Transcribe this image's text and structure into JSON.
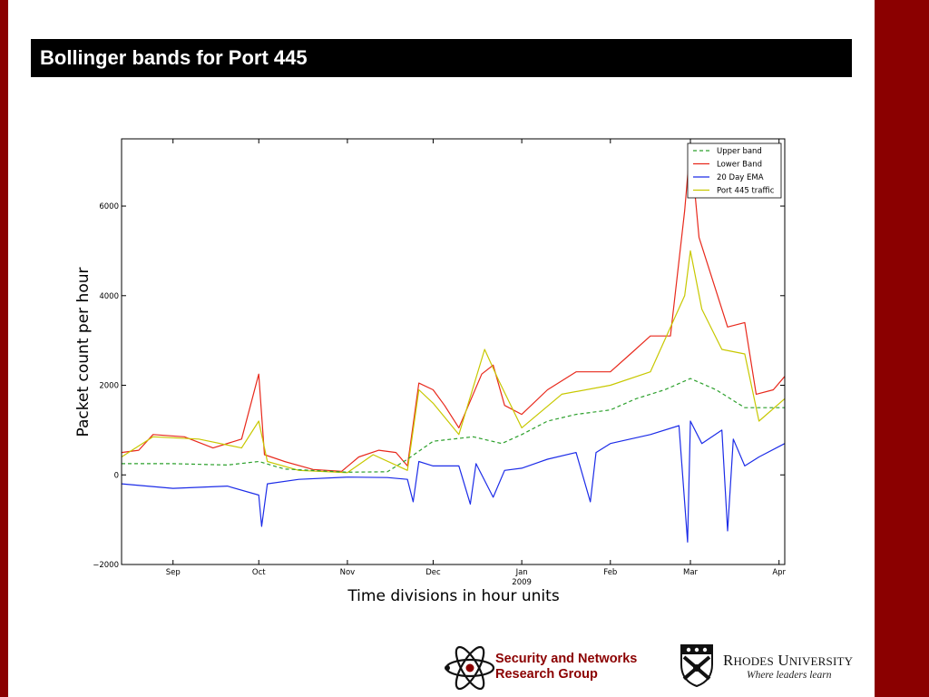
{
  "slide": {
    "title": "Bollinger bands for Port 445",
    "frame_color": "#8b0000"
  },
  "chart_data": {
    "type": "line",
    "title": "",
    "xlabel": "Time divisions in hour units",
    "ylabel": "Packet count per hour",
    "x_range": [
      "2008-08-14",
      "2009-04-03"
    ],
    "ylim": [
      -2000,
      7500
    ],
    "yticks": [
      -2000,
      0,
      2000,
      4000,
      6000
    ],
    "xticks": [
      {
        "date": "2008-09-01",
        "label": "Sep"
      },
      {
        "date": "2008-10-01",
        "label": "Oct"
      },
      {
        "date": "2008-11-01",
        "label": "Nov"
      },
      {
        "date": "2008-12-01",
        "label": "Dec"
      },
      {
        "date": "2009-01-01",
        "label": "Jan",
        "sublabel": "2009"
      },
      {
        "date": "2009-02-01",
        "label": "Feb"
      },
      {
        "date": "2009-03-01",
        "label": "Mar"
      },
      {
        "date": "2009-04-01",
        "label": "Apr"
      }
    ],
    "grid": false,
    "legend_position": "top-right",
    "series": [
      {
        "name": "Upper band",
        "color": "#2ca02c",
        "style": "dashed",
        "points": [
          [
            "2008-08-14",
            250
          ],
          [
            "2008-09-01",
            250
          ],
          [
            "2008-09-20",
            220
          ],
          [
            "2008-10-01",
            300
          ],
          [
            "2008-10-10",
            130
          ],
          [
            "2008-11-01",
            60
          ],
          [
            "2008-11-15",
            70
          ],
          [
            "2008-11-22",
            350
          ],
          [
            "2008-12-01",
            750
          ],
          [
            "2008-12-15",
            850
          ],
          [
            "2008-12-25",
            700
          ],
          [
            "2009-01-01",
            900
          ],
          [
            "2009-01-10",
            1200
          ],
          [
            "2009-01-20",
            1350
          ],
          [
            "2009-02-01",
            1450
          ],
          [
            "2009-02-10",
            1700
          ],
          [
            "2009-02-20",
            1900
          ],
          [
            "2009-03-01",
            2150
          ],
          [
            "2009-03-10",
            1900
          ],
          [
            "2009-03-20",
            1500
          ],
          [
            "2009-04-03",
            1500
          ]
        ]
      },
      {
        "name": "Lower Band",
        "color": "#e8291c",
        "style": "solid",
        "points": [
          [
            "2008-08-14",
            500
          ],
          [
            "2008-08-20",
            550
          ],
          [
            "2008-08-25",
            900
          ],
          [
            "2008-09-05",
            850
          ],
          [
            "2008-09-15",
            600
          ],
          [
            "2008-09-25",
            800
          ],
          [
            "2008-10-01",
            2250
          ],
          [
            "2008-10-03",
            450
          ],
          [
            "2008-10-10",
            300
          ],
          [
            "2008-10-20",
            120
          ],
          [
            "2008-10-30",
            80
          ],
          [
            "2008-11-05",
            400
          ],
          [
            "2008-11-12",
            550
          ],
          [
            "2008-11-18",
            500
          ],
          [
            "2008-11-22",
            200
          ],
          [
            "2008-11-26",
            2050
          ],
          [
            "2008-12-01",
            1900
          ],
          [
            "2008-12-05",
            1550
          ],
          [
            "2008-12-10",
            1050
          ],
          [
            "2008-12-18",
            2250
          ],
          [
            "2008-12-22",
            2450
          ],
          [
            "2008-12-26",
            1550
          ],
          [
            "2009-01-01",
            1350
          ],
          [
            "2009-01-10",
            1900
          ],
          [
            "2009-01-20",
            2300
          ],
          [
            "2009-02-01",
            2300
          ],
          [
            "2009-02-08",
            2700
          ],
          [
            "2009-02-15",
            3100
          ],
          [
            "2009-02-22",
            3100
          ],
          [
            "2009-02-27",
            5900
          ],
          [
            "2009-03-01",
            7400
          ],
          [
            "2009-03-04",
            5300
          ],
          [
            "2009-03-08",
            4500
          ],
          [
            "2009-03-14",
            3300
          ],
          [
            "2009-03-20",
            3400
          ],
          [
            "2009-03-24",
            1800
          ],
          [
            "2009-03-30",
            1900
          ],
          [
            "2009-04-03",
            2200
          ]
        ]
      },
      {
        "name": "20 Day EMA",
        "color": "#1c2ce8",
        "style": "solid",
        "points": [
          [
            "2008-08-14",
            -200
          ],
          [
            "2008-09-01",
            -300
          ],
          [
            "2008-09-20",
            -250
          ],
          [
            "2008-10-01",
            -450
          ],
          [
            "2008-10-02",
            -1150
          ],
          [
            "2008-10-04",
            -200
          ],
          [
            "2008-10-15",
            -100
          ],
          [
            "2008-11-01",
            -50
          ],
          [
            "2008-11-15",
            -60
          ],
          [
            "2008-11-22",
            -100
          ],
          [
            "2008-11-24",
            -600
          ],
          [
            "2008-11-26",
            300
          ],
          [
            "2008-12-01",
            200
          ],
          [
            "2008-12-10",
            200
          ],
          [
            "2008-12-14",
            -650
          ],
          [
            "2008-12-16",
            250
          ],
          [
            "2008-12-22",
            -500
          ],
          [
            "2008-12-26",
            100
          ],
          [
            "2009-01-01",
            150
          ],
          [
            "2009-01-10",
            350
          ],
          [
            "2009-01-20",
            500
          ],
          [
            "2009-01-25",
            -600
          ],
          [
            "2009-01-27",
            500
          ],
          [
            "2009-02-01",
            700
          ],
          [
            "2009-02-15",
            900
          ],
          [
            "2009-02-25",
            1100
          ],
          [
            "2009-02-28",
            -1500
          ],
          [
            "2009-03-01",
            1200
          ],
          [
            "2009-03-05",
            700
          ],
          [
            "2009-03-12",
            1000
          ],
          [
            "2009-03-14",
            -1250
          ],
          [
            "2009-03-16",
            800
          ],
          [
            "2009-03-20",
            200
          ],
          [
            "2009-03-25",
            400
          ],
          [
            "2009-04-03",
            700
          ]
        ]
      },
      {
        "name": "Port 445 traffic",
        "color": "#c8c800",
        "style": "solid",
        "points": [
          [
            "2008-08-14",
            400
          ],
          [
            "2008-08-25",
            850
          ],
          [
            "2008-09-10",
            800
          ],
          [
            "2008-09-25",
            600
          ],
          [
            "2008-10-01",
            1200
          ],
          [
            "2008-10-04",
            300
          ],
          [
            "2008-10-15",
            100
          ],
          [
            "2008-11-01",
            50
          ],
          [
            "2008-11-10",
            450
          ],
          [
            "2008-11-22",
            100
          ],
          [
            "2008-11-26",
            1900
          ],
          [
            "2008-12-01",
            1600
          ],
          [
            "2008-12-10",
            900
          ],
          [
            "2008-12-19",
            2800
          ],
          [
            "2008-12-24",
            2100
          ],
          [
            "2009-01-01",
            1050
          ],
          [
            "2009-01-15",
            1800
          ],
          [
            "2009-02-01",
            2000
          ],
          [
            "2009-02-15",
            2300
          ],
          [
            "2009-02-27",
            4000
          ],
          [
            "2009-03-01",
            5000
          ],
          [
            "2009-03-05",
            3700
          ],
          [
            "2009-03-12",
            2800
          ],
          [
            "2009-03-20",
            2700
          ],
          [
            "2009-03-25",
            1200
          ],
          [
            "2009-04-03",
            1700
          ]
        ]
      }
    ]
  },
  "logos": {
    "security_line1": "Security and Networks",
    "security_line2": "Research Group",
    "rhodes_first": "R",
    "rhodes_first_rest": "HODES",
    "rhodes_second": "U",
    "rhodes_second_rest": "NIVERSITY",
    "rhodes_tagline": "Where leaders learn"
  }
}
